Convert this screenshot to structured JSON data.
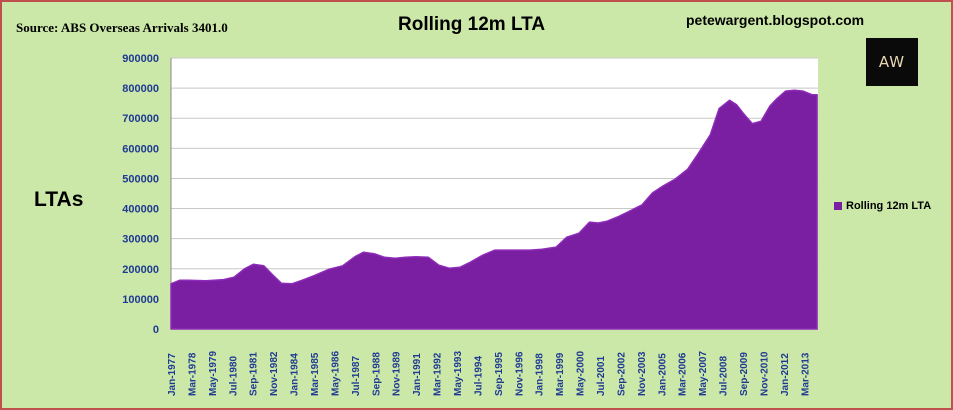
{
  "header": {
    "source": "Source: ABS Overseas Arrivals 3401.0",
    "title": "Rolling 12m LTA",
    "blog": "petewargent.blogspot.com",
    "logo_text": "AW"
  },
  "colors": {
    "background": "#cce8a8",
    "plot_background": "#ffffff",
    "area_fill": "#7a1fa2",
    "frame": "#c0504d",
    "tick_text": "#1f3a93"
  },
  "chart_data": {
    "type": "area",
    "title": "Rolling 12m LTA",
    "ylabel": "LTAs",
    "xlabel": "",
    "ylim": [
      0,
      900000
    ],
    "yticks": [
      0,
      100000,
      200000,
      300000,
      400000,
      500000,
      600000,
      700000,
      800000,
      900000
    ],
    "yticks_labels": [
      "0",
      "100000",
      "200000",
      "300000",
      "400000",
      "500000",
      "600000",
      "700000",
      "800000",
      "900000"
    ],
    "xticks": [
      "Jan-1977",
      "Mar-1978",
      "May-1979",
      "Jul-1980",
      "Sep-1981",
      "Nov-1982",
      "Jan-1984",
      "Mar-1985",
      "May-1986",
      "Jul-1987",
      "Sep-1988",
      "Nov-1989",
      "Jan-1991",
      "Mar-1992",
      "May-1993",
      "Jul-1994",
      "Sep-1995",
      "Nov-1996",
      "Jan-1998",
      "Mar-1999",
      "May-2000",
      "Jul-2001",
      "Sep-2002",
      "Nov-2003",
      "Jan-2005",
      "Mar-2006",
      "May-2007",
      "Jul-2008",
      "Sep-2009",
      "Nov-2010",
      "Jan-2012",
      "Mar-2013"
    ],
    "grid": true,
    "legend": "right",
    "series": [
      {
        "name": "Rolling 12m LTA",
        "x": [
          1977.0,
          1977.5,
          1978.0,
          1979.0,
          1980.0,
          1980.6,
          1981.2,
          1981.7,
          1982.3,
          1982.8,
          1983.3,
          1983.9,
          1984.5,
          1985.2,
          1986.0,
          1986.8,
          1987.5,
          1988.0,
          1988.6,
          1989.2,
          1989.8,
          1990.4,
          1991.0,
          1991.7,
          1992.3,
          1992.9,
          1993.5,
          1994.1,
          1994.8,
          1995.5,
          1996.1,
          1996.8,
          1997.5,
          1998.2,
          1999.0,
          1999.6,
          2000.3,
          2000.9,
          2001.4,
          2001.9,
          2002.5,
          2003.2,
          2003.9,
          2004.5,
          2005.1,
          2005.8,
          2006.5,
          2007.1,
          2007.8,
          2008.3,
          2008.9,
          2009.3,
          2009.7,
          2010.2,
          2010.7,
          2011.2,
          2011.6,
          2012.1,
          2012.6,
          2013.1,
          2013.6,
          2013.9
        ],
        "values": [
          150000,
          162000,
          162000,
          160000,
          164000,
          172000,
          200000,
          215000,
          210000,
          180000,
          152000,
          150000,
          162000,
          178000,
          198000,
          210000,
          240000,
          255000,
          250000,
          238000,
          235000,
          238000,
          240000,
          238000,
          212000,
          202000,
          205000,
          222000,
          245000,
          262000,
          262000,
          262000,
          262000,
          265000,
          272000,
          305000,
          318000,
          355000,
          352000,
          358000,
          372000,
          392000,
          412000,
          452000,
          475000,
          498000,
          530000,
          582000,
          645000,
          732000,
          760000,
          745000,
          715000,
          682000,
          690000,
          740000,
          765000,
          790000,
          793000,
          790000,
          778000,
          778000
        ]
      }
    ]
  }
}
